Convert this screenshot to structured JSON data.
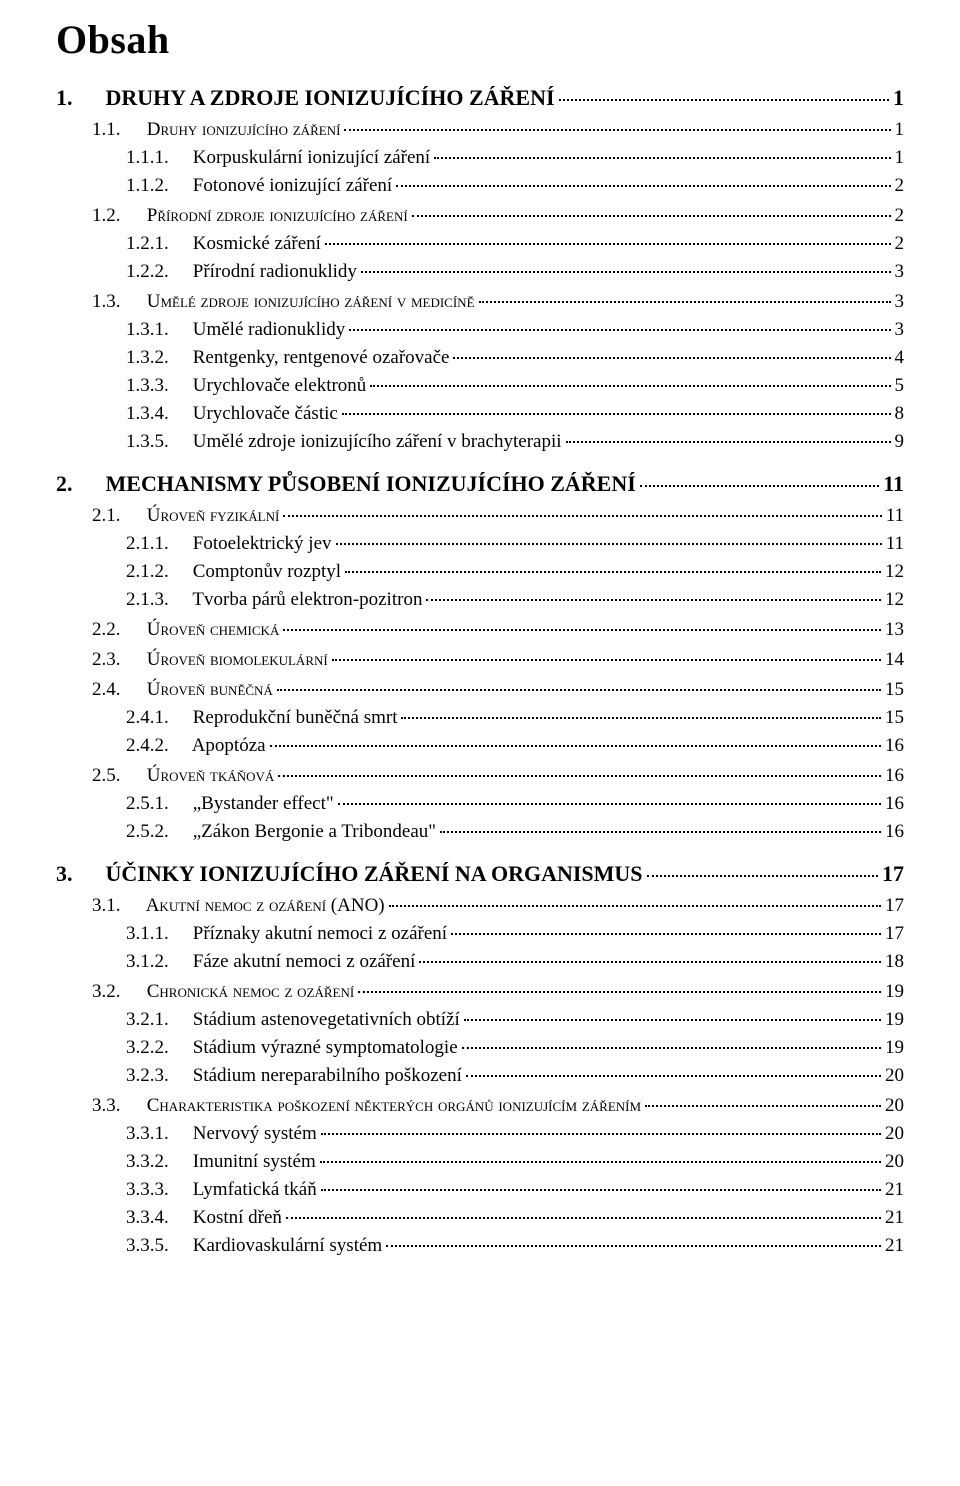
{
  "title": "Obsah",
  "toc": [
    {
      "level": 1,
      "num": "1.",
      "text": "DRUHY A ZDROJE IONIZUJÍCÍHO ZÁŘENÍ",
      "page": "1"
    },
    {
      "level": 2,
      "num": "1.1.",
      "text": "Druhy ionizujícího záření",
      "page": "1"
    },
    {
      "level": 3,
      "num": "1.1.1.",
      "text": "Korpuskulární ionizující záření",
      "page": "1"
    },
    {
      "level": 3,
      "num": "1.1.2.",
      "text": "Fotonové ionizující záření",
      "page": "2"
    },
    {
      "level": 2,
      "num": "1.2.",
      "text": "Přírodní zdroje ionizujícího záření",
      "page": "2"
    },
    {
      "level": 3,
      "num": "1.2.1.",
      "text": "Kosmické záření",
      "page": "2"
    },
    {
      "level": 3,
      "num": "1.2.2.",
      "text": "Přírodní radionuklidy",
      "page": "3"
    },
    {
      "level": 2,
      "num": "1.3.",
      "text": "Umělé zdroje ionizujícího záření v medicíně",
      "page": "3"
    },
    {
      "level": 3,
      "num": "1.3.1.",
      "text": "Umělé radionuklidy",
      "page": "3"
    },
    {
      "level": 3,
      "num": "1.3.2.",
      "text": "Rentgenky, rentgenové ozařovače",
      "page": "4"
    },
    {
      "level": 3,
      "num": "1.3.3.",
      "text": "Urychlovače elektronů",
      "page": "5"
    },
    {
      "level": 3,
      "num": "1.3.4.",
      "text": "Urychlovače částic",
      "page": "8"
    },
    {
      "level": 3,
      "num": "1.3.5.",
      "text": "Umělé zdroje ionizujícího záření v brachyterapii",
      "page": "9"
    },
    {
      "level": 1,
      "num": "2.",
      "text": "MECHANISMY PŮSOBENÍ IONIZUJÍCÍHO ZÁŘENÍ",
      "page": "11"
    },
    {
      "level": 2,
      "num": "2.1.",
      "text": "Úroveň fyzikální",
      "page": "11"
    },
    {
      "level": 3,
      "num": "2.1.1.",
      "text": "Fotoelektrický jev",
      "page": "11"
    },
    {
      "level": 3,
      "num": "2.1.2.",
      "text": "Comptonův rozptyl",
      "page": "12"
    },
    {
      "level": 3,
      "num": "2.1.3.",
      "text": "Tvorba párů elektron-pozitron",
      "page": "12"
    },
    {
      "level": 2,
      "num": "2.2.",
      "text": "Úroveň chemická",
      "page": "13"
    },
    {
      "level": 2,
      "num": "2.3.",
      "text": "Úroveň biomolekulární",
      "page": "14"
    },
    {
      "level": 2,
      "num": "2.4.",
      "text": "Úroveň buněčná",
      "page": "15"
    },
    {
      "level": 3,
      "num": "2.4.1.",
      "text": "Reprodukční buněčná smrt",
      "page": "15"
    },
    {
      "level": 3,
      "num": "2.4.2.",
      "text": "Apoptóza",
      "page": "16"
    },
    {
      "level": 2,
      "num": "2.5.",
      "text": "Úroveň tkáňová",
      "page": "16"
    },
    {
      "level": 3,
      "num": "2.5.1.",
      "text": "„Bystander effect\"",
      "page": "16"
    },
    {
      "level": 3,
      "num": "2.5.2.",
      "text": "„Zákon Bergonie a Tribondeau\"",
      "page": "16"
    },
    {
      "level": 1,
      "num": "3.",
      "text": "ÚČINKY IONIZUJÍCÍHO ZÁŘENÍ NA ORGANISMUS",
      "page": "17"
    },
    {
      "level": 2,
      "num": "3.1.",
      "text": "Akutní nemoc z ozáření (ANO)",
      "page": "17"
    },
    {
      "level": 3,
      "num": "3.1.1.",
      "text": "Příznaky akutní nemoci z ozáření",
      "page": "17"
    },
    {
      "level": 3,
      "num": "3.1.2.",
      "text": "Fáze akutní nemoci z ozáření",
      "page": "18"
    },
    {
      "level": 2,
      "num": "3.2.",
      "text": "Chronická nemoc z ozáření",
      "page": "19"
    },
    {
      "level": 3,
      "num": "3.2.1.",
      "text": "Stádium astenovegetativních obtíží",
      "page": "19"
    },
    {
      "level": 3,
      "num": "3.2.2.",
      "text": "Stádium výrazné symptomatologie",
      "page": "19"
    },
    {
      "level": 3,
      "num": "3.2.3.",
      "text": "Stádium nereparabilního poškození",
      "page": "20"
    },
    {
      "level": 2,
      "num": "3.3.",
      "text": "Charakteristika poškození některých orgánů ionizujícím zářením",
      "page": "20"
    },
    {
      "level": 3,
      "num": "3.3.1.",
      "text": "Nervový systém",
      "page": "20"
    },
    {
      "level": 3,
      "num": "3.3.2.",
      "text": "Imunitní systém",
      "page": "20"
    },
    {
      "level": 3,
      "num": "3.3.3.",
      "text": "Lymfatická tkáň",
      "page": "21"
    },
    {
      "level": 3,
      "num": "3.3.4.",
      "text": "Kostní dřeň",
      "page": "21"
    },
    {
      "level": 3,
      "num": "3.3.5.",
      "text": "Kardiovaskulární systém",
      "page": "21"
    }
  ]
}
